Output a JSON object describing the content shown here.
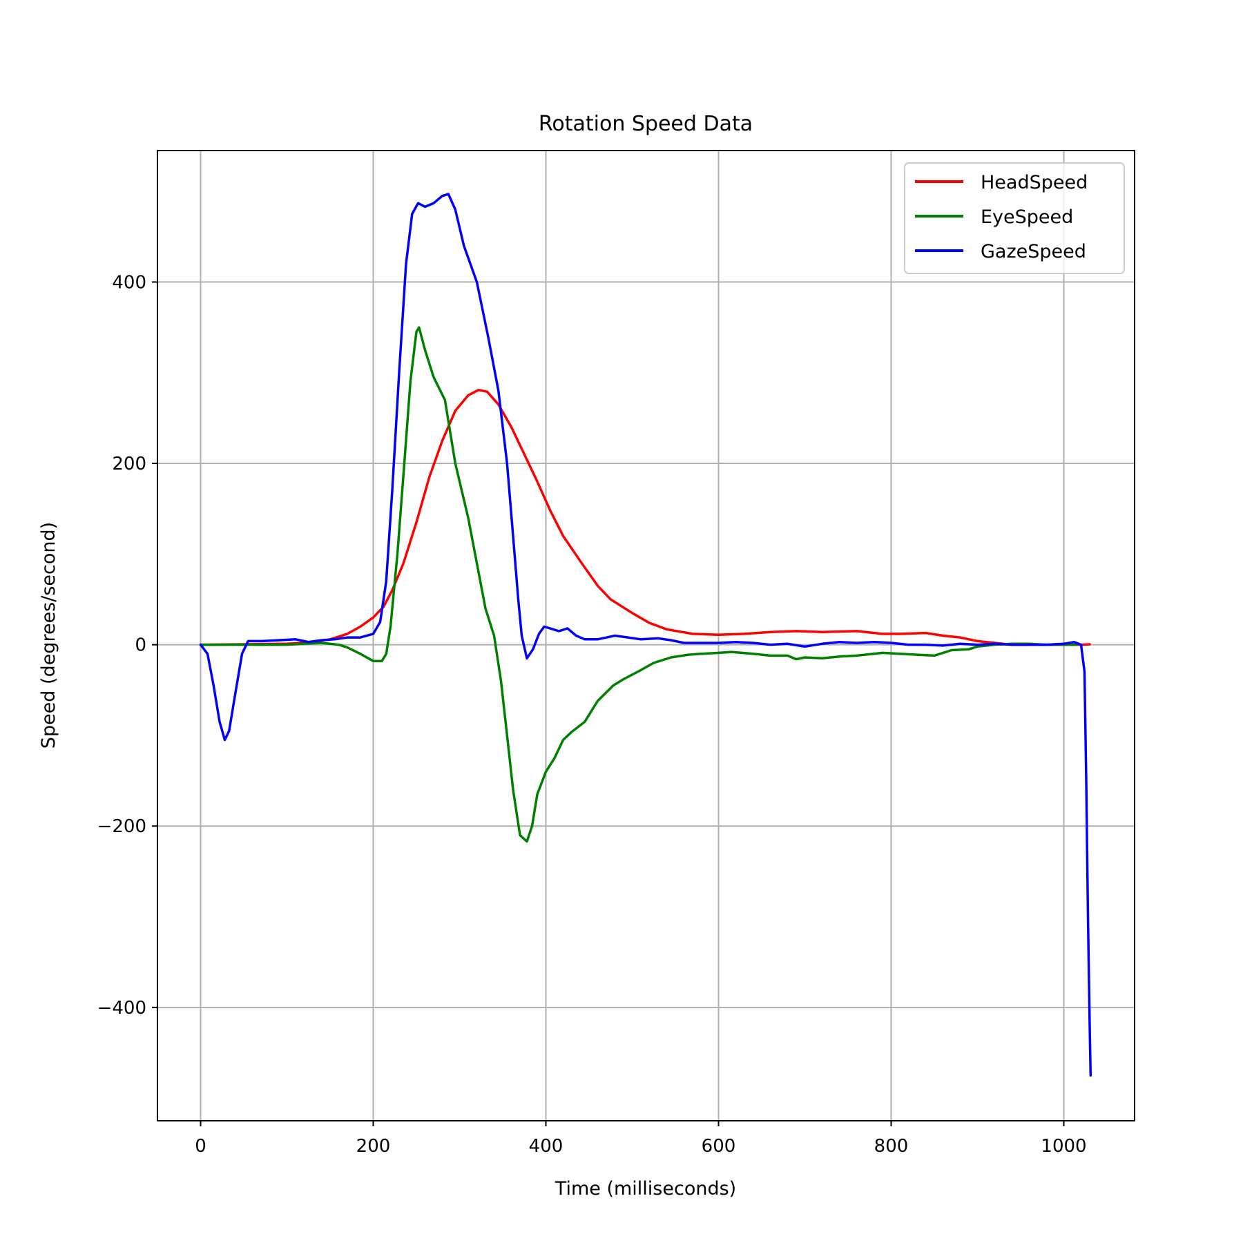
{
  "chart_data": {
    "type": "line",
    "title": "Rotation Speed Data",
    "xlabel": "Time (milliseconds)",
    "ylabel": "Speed (degrees/second)",
    "xlim": [
      -50,
      1082
    ],
    "ylim": [
      -525,
      545
    ],
    "xticks": [
      0,
      200,
      400,
      600,
      800,
      1000
    ],
    "yticks": [
      -400,
      -200,
      0,
      200,
      400
    ],
    "xtick_labels": [
      "0",
      "200",
      "400",
      "600",
      "800",
      "1000"
    ],
    "ytick_labels": [
      "−400",
      "−200",
      "0",
      "200",
      "400"
    ],
    "grid": true,
    "legend_position": "top-right",
    "series": [
      {
        "name": "HeadSpeed",
        "color": "#ff0000",
        "points": [
          [
            0,
            0
          ],
          [
            50,
            0.5
          ],
          [
            100,
            1
          ],
          [
            130,
            3
          ],
          [
            150,
            6
          ],
          [
            170,
            12
          ],
          [
            185,
            20
          ],
          [
            200,
            30
          ],
          [
            212,
            42
          ],
          [
            222,
            60
          ],
          [
            235,
            90
          ],
          [
            250,
            135
          ],
          [
            265,
            185
          ],
          [
            280,
            225
          ],
          [
            295,
            258
          ],
          [
            310,
            275
          ],
          [
            322,
            281
          ],
          [
            332,
            279
          ],
          [
            345,
            265
          ],
          [
            360,
            240
          ],
          [
            375,
            210
          ],
          [
            390,
            180
          ],
          [
            405,
            148
          ],
          [
            420,
            120
          ],
          [
            440,
            92
          ],
          [
            460,
            65
          ],
          [
            475,
            50
          ],
          [
            500,
            35
          ],
          [
            520,
            24
          ],
          [
            540,
            17
          ],
          [
            570,
            12
          ],
          [
            600,
            11
          ],
          [
            630,
            12
          ],
          [
            660,
            14
          ],
          [
            690,
            15
          ],
          [
            720,
            14
          ],
          [
            760,
            15
          ],
          [
            790,
            12
          ],
          [
            810,
            12
          ],
          [
            840,
            13
          ],
          [
            860,
            10
          ],
          [
            880,
            8
          ],
          [
            900,
            4
          ],
          [
            920,
            2
          ],
          [
            940,
            0
          ],
          [
            980,
            0
          ],
          [
            1000,
            0
          ],
          [
            1020,
            0
          ],
          [
            1030,
            0.5
          ]
        ]
      },
      {
        "name": "EyeSpeed",
        "color": "#008000",
        "points": [
          [
            0,
            0
          ],
          [
            60,
            0
          ],
          [
            100,
            0
          ],
          [
            120,
            1
          ],
          [
            140,
            2
          ],
          [
            160,
            0
          ],
          [
            170,
            -3
          ],
          [
            185,
            -10
          ],
          [
            200,
            -18
          ],
          [
            210,
            -18
          ],
          [
            215,
            -10
          ],
          [
            220,
            20
          ],
          [
            228,
            100
          ],
          [
            236,
            200
          ],
          [
            243,
            290
          ],
          [
            250,
            345
          ],
          [
            253,
            350
          ],
          [
            260,
            325
          ],
          [
            270,
            295
          ],
          [
            283,
            270
          ],
          [
            295,
            200
          ],
          [
            310,
            140
          ],
          [
            320,
            90
          ],
          [
            330,
            40
          ],
          [
            340,
            10
          ],
          [
            348,
            -40
          ],
          [
            355,
            -100
          ],
          [
            362,
            -160
          ],
          [
            370,
            -210
          ],
          [
            378,
            -217
          ],
          [
            384,
            -200
          ],
          [
            390,
            -165
          ],
          [
            400,
            -140
          ],
          [
            410,
            -125
          ],
          [
            420,
            -105
          ],
          [
            430,
            -96
          ],
          [
            445,
            -85
          ],
          [
            460,
            -62
          ],
          [
            478,
            -45
          ],
          [
            490,
            -38
          ],
          [
            510,
            -28
          ],
          [
            525,
            -20
          ],
          [
            545,
            -14
          ],
          [
            565,
            -11
          ],
          [
            580,
            -10
          ],
          [
            600,
            -9
          ],
          [
            615,
            -8
          ],
          [
            640,
            -10
          ],
          [
            660,
            -12
          ],
          [
            680,
            -12
          ],
          [
            690,
            -16
          ],
          [
            700,
            -14
          ],
          [
            720,
            -15
          ],
          [
            740,
            -13
          ],
          [
            760,
            -12
          ],
          [
            780,
            -10
          ],
          [
            790,
            -9
          ],
          [
            810,
            -10
          ],
          [
            830,
            -11
          ],
          [
            850,
            -12
          ],
          [
            870,
            -6
          ],
          [
            890,
            -5
          ],
          [
            900,
            -2
          ],
          [
            920,
            0
          ],
          [
            940,
            1
          ],
          [
            960,
            1
          ],
          [
            980,
            0
          ],
          [
            1000,
            0
          ],
          [
            1015,
            0
          ]
        ]
      },
      {
        "name": "GazeSpeed",
        "color": "#0000ff",
        "points": [
          [
            0,
            0
          ],
          [
            8,
            -10
          ],
          [
            15,
            -45
          ],
          [
            22,
            -85
          ],
          [
            28,
            -105
          ],
          [
            33,
            -95
          ],
          [
            40,
            -55
          ],
          [
            48,
            -10
          ],
          [
            55,
            4
          ],
          [
            70,
            4
          ],
          [
            90,
            5
          ],
          [
            110,
            6
          ],
          [
            125,
            3
          ],
          [
            140,
            5
          ],
          [
            155,
            6
          ],
          [
            170,
            8
          ],
          [
            185,
            8
          ],
          [
            200,
            12
          ],
          [
            208,
            25
          ],
          [
            215,
            70
          ],
          [
            222,
            170
          ],
          [
            230,
            300
          ],
          [
            238,
            420
          ],
          [
            245,
            475
          ],
          [
            252,
            487
          ],
          [
            260,
            483
          ],
          [
            270,
            487
          ],
          [
            280,
            495
          ],
          [
            287,
            497
          ],
          [
            295,
            480
          ],
          [
            305,
            440
          ],
          [
            320,
            400
          ],
          [
            333,
            340
          ],
          [
            345,
            280
          ],
          [
            355,
            200
          ],
          [
            362,
            120
          ],
          [
            368,
            50
          ],
          [
            372,
            10
          ],
          [
            378,
            -15
          ],
          [
            385,
            -5
          ],
          [
            392,
            12
          ],
          [
            398,
            20
          ],
          [
            405,
            18
          ],
          [
            415,
            15
          ],
          [
            425,
            18
          ],
          [
            435,
            10
          ],
          [
            445,
            6
          ],
          [
            460,
            6
          ],
          [
            480,
            10
          ],
          [
            495,
            8
          ],
          [
            510,
            6
          ],
          [
            530,
            7
          ],
          [
            545,
            5
          ],
          [
            560,
            2
          ],
          [
            580,
            2
          ],
          [
            600,
            2
          ],
          [
            620,
            3
          ],
          [
            640,
            2
          ],
          [
            660,
            0
          ],
          [
            680,
            1
          ],
          [
            700,
            -2
          ],
          [
            720,
            1
          ],
          [
            740,
            3
          ],
          [
            760,
            2
          ],
          [
            780,
            3
          ],
          [
            800,
            2
          ],
          [
            820,
            0
          ],
          [
            840,
            0
          ],
          [
            860,
            -1
          ],
          [
            880,
            1
          ],
          [
            900,
            0
          ],
          [
            920,
            1
          ],
          [
            940,
            0
          ],
          [
            960,
            0
          ],
          [
            980,
            0
          ],
          [
            1000,
            1
          ],
          [
            1012,
            3
          ],
          [
            1020,
            0
          ],
          [
            1024,
            -30
          ],
          [
            1026,
            -150
          ],
          [
            1028,
            -300
          ],
          [
            1030,
            -420
          ],
          [
            1031,
            -475
          ]
        ]
      }
    ]
  }
}
